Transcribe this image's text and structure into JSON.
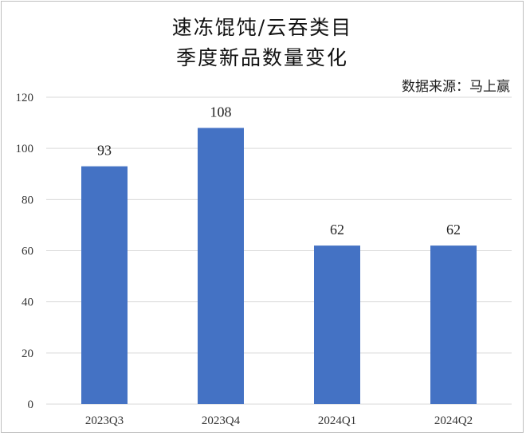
{
  "title_line1": "速冻馄饨/云吞类目",
  "title_line2": "季度新品数量变化",
  "source": "数据来源：马上赢",
  "colors": {
    "bar": "#4472C4",
    "grid": "#d9d9d9"
  },
  "chart_data": {
    "type": "bar",
    "title": "速冻馄饨/云吞类目 季度新品数量变化",
    "categories": [
      "2023Q3",
      "2023Q4",
      "2024Q1",
      "2024Q2"
    ],
    "values": [
      93,
      108,
      62,
      62
    ],
    "ylim": [
      0,
      120
    ],
    "yticks": [
      0,
      20,
      40,
      60,
      80,
      100,
      120
    ],
    "grid": true,
    "data_labels": true
  }
}
